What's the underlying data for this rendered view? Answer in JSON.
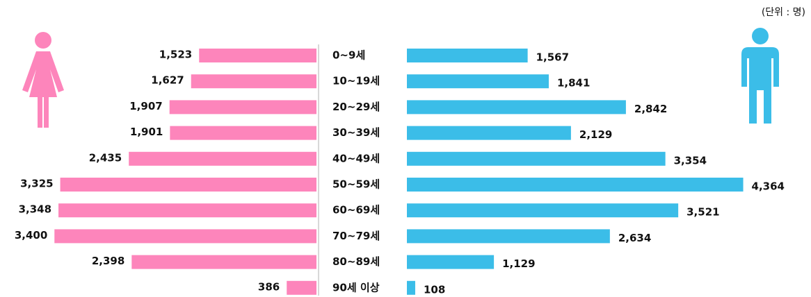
{
  "chart_data": {
    "type": "pyramid",
    "unit_note": "(단위 : 명)",
    "categories": [
      "0~9세",
      "10~19세",
      "20~29세",
      "30~39세",
      "40~49세",
      "50~59세",
      "60~69세",
      "70~79세",
      "80~89세",
      "90세 이상"
    ],
    "series": [
      {
        "color": "#fd85bb",
        "side": "left",
        "values": [
          1523,
          1627,
          1907,
          1901,
          2435,
          3325,
          3348,
          3400,
          2398,
          386
        ],
        "value_labels": [
          "1,523",
          "1,627",
          "1,907",
          "1,901",
          "2,435",
          "3,325",
          "3,348",
          "3,400",
          "2,398",
          "386"
        ]
      },
      {
        "color": "#3bbde8",
        "side": "right",
        "values": [
          1567,
          1841,
          2842,
          2129,
          3354,
          4364,
          3521,
          2634,
          1129,
          108
        ],
        "value_labels": [
          "1,567",
          "1,841",
          "2,842",
          "2,129",
          "3,354",
          "4,364",
          "3,521",
          "2,634",
          "1,129",
          "108"
        ]
      }
    ]
  }
}
